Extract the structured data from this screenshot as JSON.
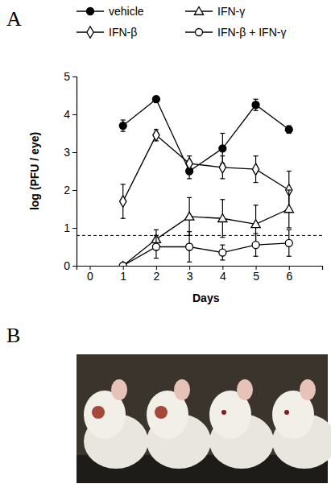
{
  "chart_data": {
    "type": "line",
    "panel_label": "A",
    "x": [
      1,
      2,
      3,
      4,
      5,
      6
    ],
    "series": [
      {
        "name": "vehicle",
        "color": "#000000",
        "marker": "filled-circle",
        "line_style": "solid",
        "values": [
          3.7,
          4.4,
          2.5,
          3.1,
          4.25,
          3.6
        ],
        "errors": [
          0.15,
          0.08,
          0.2,
          0.4,
          0.15,
          0.1
        ]
      },
      {
        "name": "IFN-β",
        "color": "#000000",
        "marker": "open-diamond",
        "line_style": "solid",
        "values": [
          1.7,
          3.45,
          2.7,
          2.6,
          2.55,
          2.0
        ],
        "errors": [
          0.45,
          0.15,
          0.2,
          0.3,
          0.35,
          0.5
        ]
      },
      {
        "name": "IFN-γ",
        "color": "#000000",
        "marker": "open-triangle",
        "line_style": "solid",
        "values": [
          0,
          0.7,
          1.3,
          1.25,
          1.1,
          1.5
        ],
        "errors": [
          0.05,
          0.25,
          0.5,
          0.5,
          0.5,
          0.5
        ]
      },
      {
        "name": "IFN-β + IFN-γ",
        "color": "#000000",
        "marker": "open-circle",
        "line_style": "solid",
        "values": [
          0,
          0.5,
          0.5,
          0.35,
          0.55,
          0.6
        ],
        "errors": [
          0.05,
          0.3,
          0.4,
          0.2,
          0.3,
          0.35
        ]
      }
    ],
    "x_label": "Days",
    "y_label": "log (PFU / eye)",
    "xlim": [
      -0.4,
      7
    ],
    "xticks": [
      0,
      1,
      2,
      3,
      4,
      5,
      6
    ],
    "ylim": [
      0,
      5
    ],
    "yticks": [
      0,
      1,
      2,
      3,
      4,
      5
    ],
    "detection_limit": 0.8,
    "legend": "top",
    "grid": false
  },
  "image_panel": {
    "label": "B"
  }
}
